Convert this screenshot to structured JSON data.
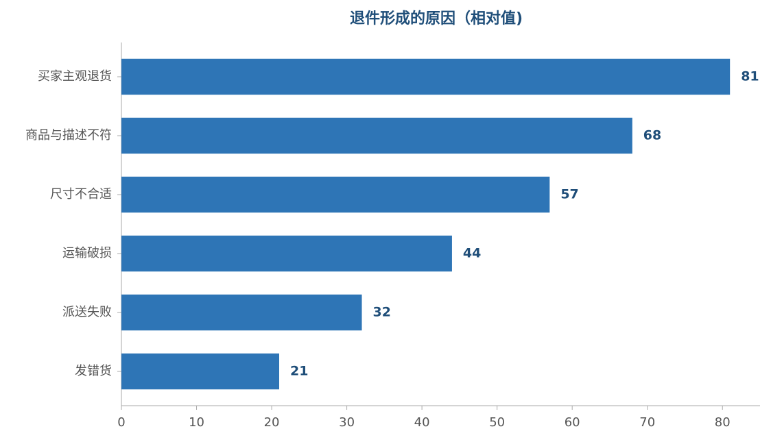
{
  "chart_data": {
    "type": "bar",
    "orientation": "horizontal",
    "title": "退件形成的原因（相对值)",
    "categories": [
      "买家主观退货",
      "商品与描述不符",
      "尺寸不合适",
      "运输破损",
      "派送失败",
      "发错货"
    ],
    "values": [
      81,
      68,
      57,
      44,
      32,
      21
    ],
    "color": "#2e75b6",
    "xlim": [
      0,
      85
    ],
    "xticks": [
      0,
      10,
      20,
      30,
      40,
      50,
      60,
      70,
      80
    ],
    "grid": false
  }
}
